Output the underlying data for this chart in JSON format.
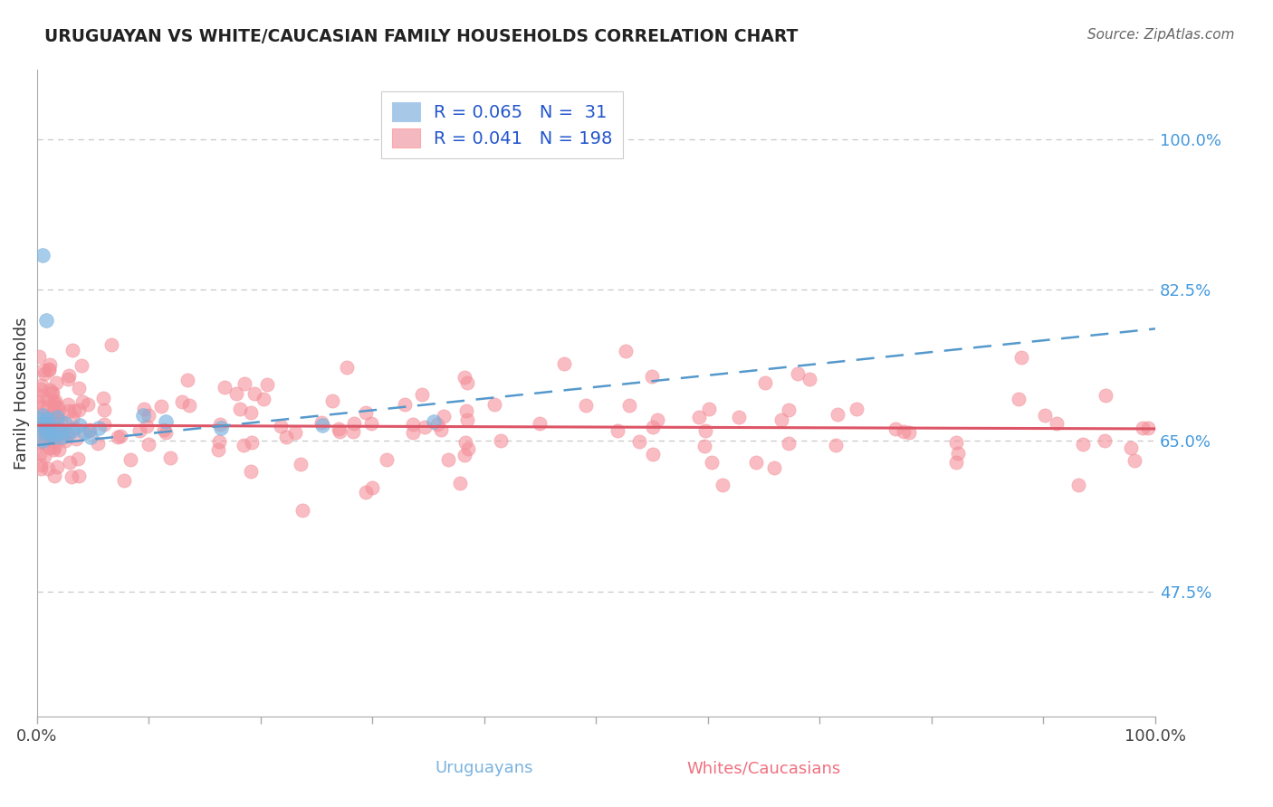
{
  "title": "URUGUAYAN VS WHITE/CAUCASIAN FAMILY HOUSEHOLDS CORRELATION CHART",
  "source": "Source: ZipAtlas.com",
  "ylabel": "Family Households",
  "y_ticks_labels": [
    "47.5%",
    "65.0%",
    "82.5%",
    "100.0%"
  ],
  "y_tick_vals": [
    0.475,
    0.65,
    0.825,
    1.0
  ],
  "legend_r1": "R = 0.065",
  "legend_n1": "N =  31",
  "legend_r2": "R = 0.041",
  "legend_n2": "N = 198",
  "uruguayan_color": "#7ab3e0",
  "caucasian_color": "#f4909a",
  "legend_patch_blue": "#a8c8e8",
  "legend_patch_pink": "#f4b8c1",
  "trend_uruguayan_color": "#5599cc",
  "trend_caucasian_color": "#dd5566",
  "background_color": "#ffffff",
  "grid_color": "#c8c8c8",
  "xlim": [
    0.0,
    1.0
  ],
  "ylim": [
    0.33,
    1.08
  ],
  "bottom_label_uruguayans": "Uruguayans",
  "bottom_label_caucasians": "Whites/Caucasians",
  "label_color_uruguayans": "#7ab3e0",
  "label_color_caucasians": "#f07080",
  "legend_text_color": "#2255cc"
}
